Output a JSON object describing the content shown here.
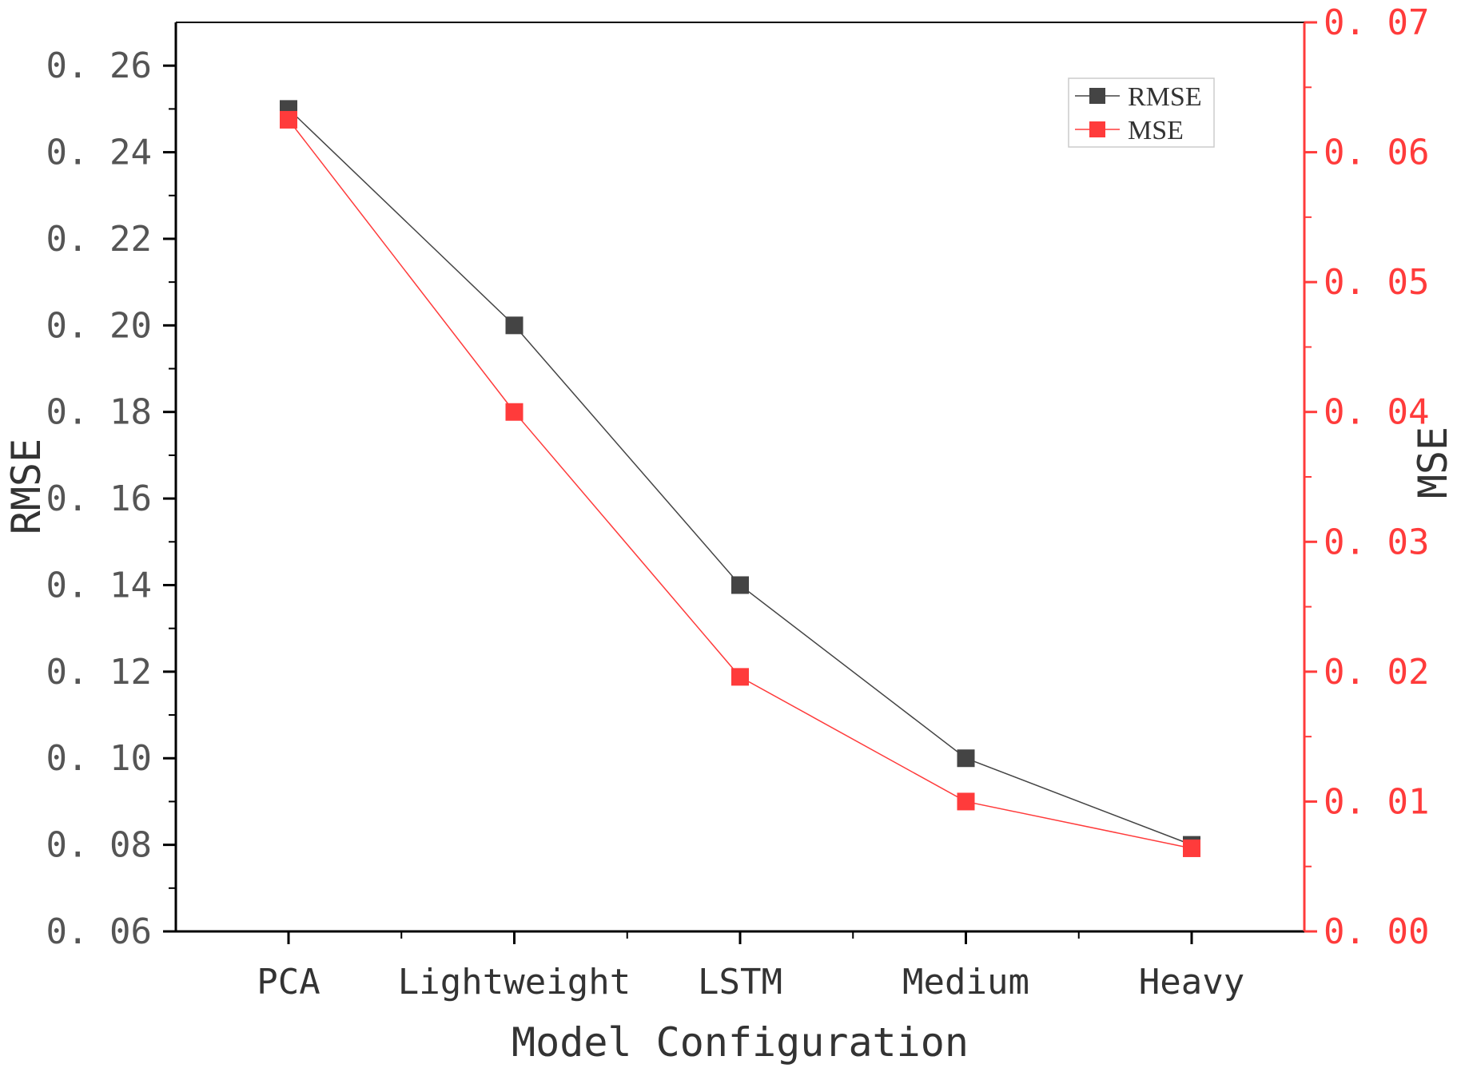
{
  "chart_data": {
    "type": "line",
    "xlabel": "Model Configuration",
    "ylabel": "RMSE",
    "ylabel_right": "MSE",
    "categories": [
      "PCA",
      "Lightweight",
      "LSTM",
      "Medium",
      "Heavy"
    ],
    "y_left": {
      "lim": [
        0.06,
        0.27
      ],
      "ticks": [
        "0.06",
        "0.08",
        "0.10",
        "0.12",
        "0.14",
        "0.16",
        "0.18",
        "0.20",
        "0.22",
        "0.24",
        "0.26"
      ],
      "tick_labels": [
        "0. 06",
        "0. 08",
        "0. 10",
        "0. 12",
        "0. 14",
        "0. 16",
        "0. 18",
        "0. 20",
        "0. 22",
        "0. 24",
        "0. 26"
      ]
    },
    "y_right": {
      "lim": [
        0.0,
        0.07
      ],
      "ticks": [
        "0.00",
        "0.01",
        "0.02",
        "0.03",
        "0.04",
        "0.05",
        "0.06",
        "0.07"
      ],
      "tick_labels": [
        "0. 00",
        "0. 01",
        "0. 02",
        "0. 03",
        "0. 04",
        "0. 05",
        "0. 06",
        "0. 07"
      ]
    },
    "series": [
      {
        "name": "RMSE",
        "axis": "left",
        "color": "#444444",
        "values": [
          0.25,
          0.2,
          0.14,
          0.1,
          0.08
        ]
      },
      {
        "name": "MSE",
        "axis": "right",
        "color": "#ff3b3b",
        "values": [
          0.0625,
          0.04,
          0.0196,
          0.01,
          0.0064
        ]
      }
    ],
    "legend": {
      "position": "top-right",
      "entries": [
        "RMSE",
        "MSE"
      ]
    }
  }
}
